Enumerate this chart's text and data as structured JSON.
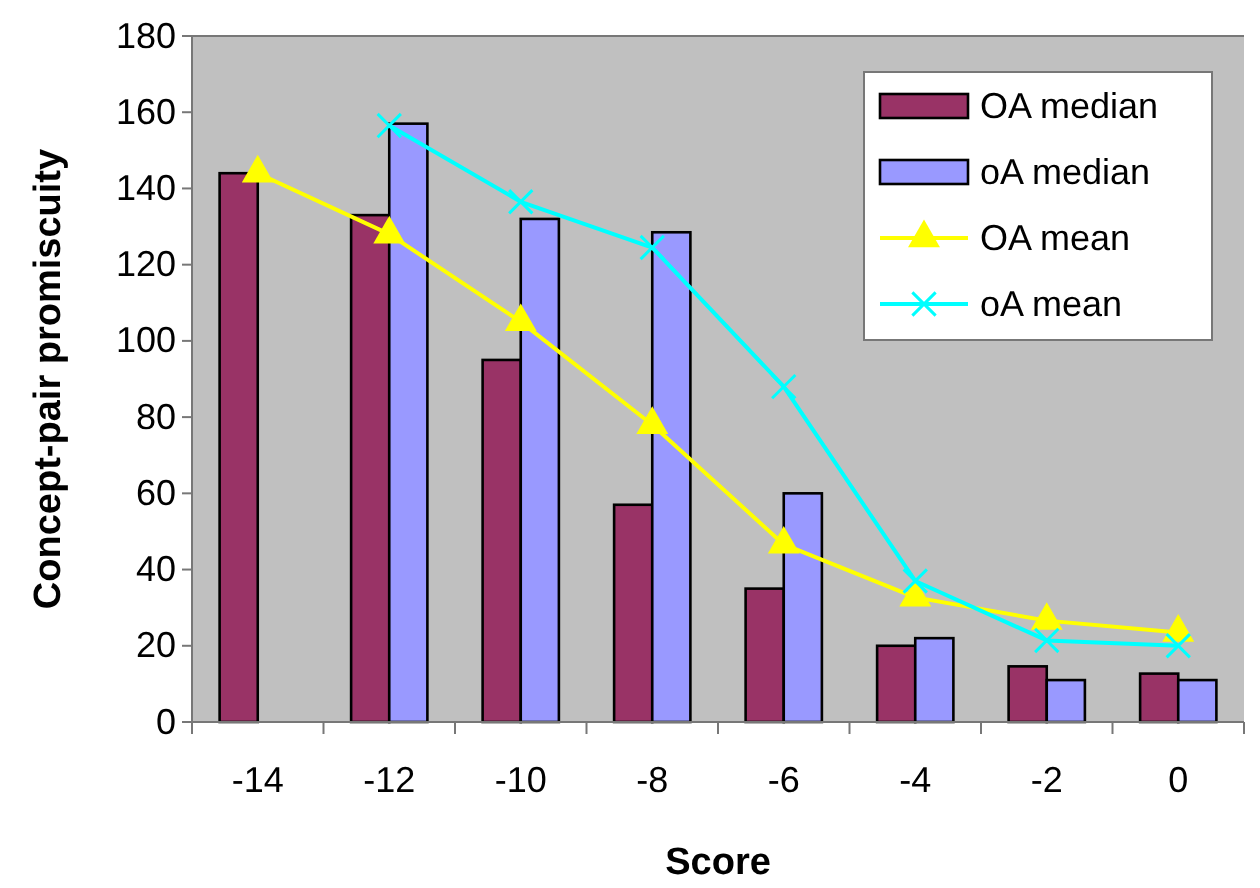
{
  "chart_data": {
    "type": "bar",
    "xlabel": "Score",
    "ylabel": "Concept-pair promiscuity",
    "categories": [
      "-14",
      "-12",
      "-10",
      "-8",
      "-6",
      "-4",
      "-2",
      "0"
    ],
    "series": [
      {
        "name": "OA median",
        "color": "#993366",
        "values": [
          144,
          133,
          95,
          57,
          35,
          20,
          14.6,
          12.7
        ]
      },
      {
        "name": "oA median",
        "color": "#9999ff",
        "values": [
          null,
          157,
          132,
          128.5,
          60,
          22,
          11,
          11
        ]
      },
      {
        "name": "OA mean",
        "type": "line",
        "color": "#ffff00",
        "marker": "triangle",
        "values": [
          144,
          128,
          105,
          78,
          46.6,
          32.7,
          26.6,
          23.5
        ]
      },
      {
        "name": "oA mean",
        "type": "line",
        "color": "#00ffff",
        "marker": "cross",
        "values": [
          null,
          156.5,
          136.5,
          124.5,
          88,
          37,
          21.4,
          20
        ]
      }
    ],
    "ylim": [
      0,
      180
    ],
    "yticks": [
      0,
      20,
      40,
      60,
      80,
      100,
      120,
      140,
      160,
      180
    ],
    "legend": "top right",
    "grid": false
  }
}
